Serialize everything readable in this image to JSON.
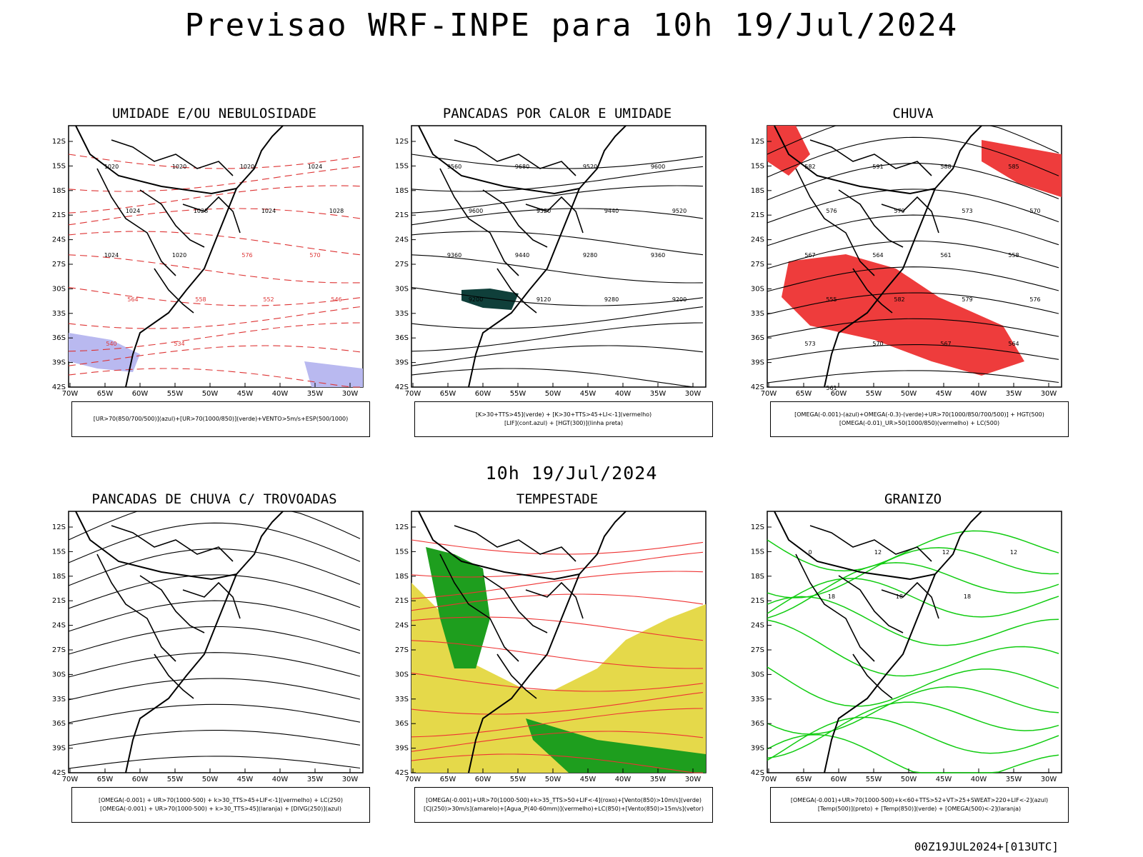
{
  "title": "Previsao WRF-INPE  para 10h 19/Jul/2024",
  "subtitle": "10h 19/Jul/2024",
  "footer": "00Z19JUL2024+[013UTC]",
  "axes": {
    "lat_labels": [
      "12S",
      "15S",
      "18S",
      "21S",
      "24S",
      "27S",
      "30S",
      "33S",
      "36S",
      "39S",
      "42S"
    ],
    "lon_labels": [
      "70W",
      "65W",
      "60W",
      "55W",
      "50W",
      "45W",
      "40W",
      "35W",
      "30W"
    ]
  },
  "panels": [
    {
      "title": "UMIDADE E/OU NEBULOSIDADE",
      "legend": [
        "[UR>70(850/700/500)](azul)+[UR>70(1000/850)](verde)+VENTO>5m/s+ESP(500/1000)"
      ],
      "labels": [
        "1020",
        "1020",
        "1020",
        "1024",
        "1024",
        "1028",
        "1024",
        "1028",
        "1024",
        "1020",
        "576",
        "570",
        "564",
        "558",
        "552",
        "546",
        "540",
        "534"
      ]
    },
    {
      "title": "PANCADAS POR CALOR E UMIDADE",
      "legend": [
        "[K>30+TTS>45](verde) + [K>30+TTS>45+LI<-1](vermelho)",
        "[LIF](cont.azul) + [HGT(300)](linha preta)"
      ],
      "labels": [
        "9560",
        "9680",
        "9520",
        "9600",
        "9600",
        "9520",
        "9440",
        "9520",
        "9360",
        "9440",
        "9280",
        "9360",
        "9200",
        "9120",
        "9280",
        "9200"
      ]
    },
    {
      "title": "CHUVA",
      "legend": [
        "[OMEGA(-0.001)-(azul)+OMEGA(-0.3)-(verde)+UR>70(1000/850/700/500)] + HGT(500)",
        "[OMEGA(-0.01)_UR>50(1000/850)(vermelho) + LC(500)"
      ],
      "labels": [
        "582",
        "591",
        "588",
        "585",
        "576",
        "579",
        "573",
        "570",
        "567",
        "564",
        "561",
        "558",
        "555",
        "582",
        "579",
        "576",
        "573",
        "570",
        "567",
        "564",
        "561"
      ]
    },
    {
      "title": "PANCADAS DE CHUVA C/ TROVOADAS",
      "legend": [
        "[OMEGA(-0.001) + UR>70(1000-500) + k>30_TTS>45+LIF<-1](vermelho) + LC(250)",
        "[OMEGA(-0.001) + UR>70(1000-500) + k>30_TTS>45](laranja) + [DIVG(250)](azul)"
      ],
      "labels": []
    },
    {
      "title": "TEMPESTADE",
      "legend": [
        "[OMEGA(-0.001)+UR>70(1000-500)+k>35_TTS>50+LIF<-4](roxo)+[Vento(850)>10m/s](verde)",
        "[CJ(250)>30m/s](amarelo)+[Agua_P(40-60mm)](vermelho)+LC(850)+[Vento(850)>15m/s](vetor)"
      ],
      "labels": []
    },
    {
      "title": "GRANIZO",
      "legend": [
        "[OMEGA(-0.001)+UR>70(1000-500)+k<60+TTS>52+VT>25+SWEAT>220+LIF<-2](azul)",
        "[Temp(500)](preto) + [Temp(850)](verde) + [OMEGA(500)<-2](laranja)"
      ],
      "labels": [
        "0",
        "12",
        "12",
        "12",
        "18",
        "18",
        "18"
      ]
    }
  ]
}
